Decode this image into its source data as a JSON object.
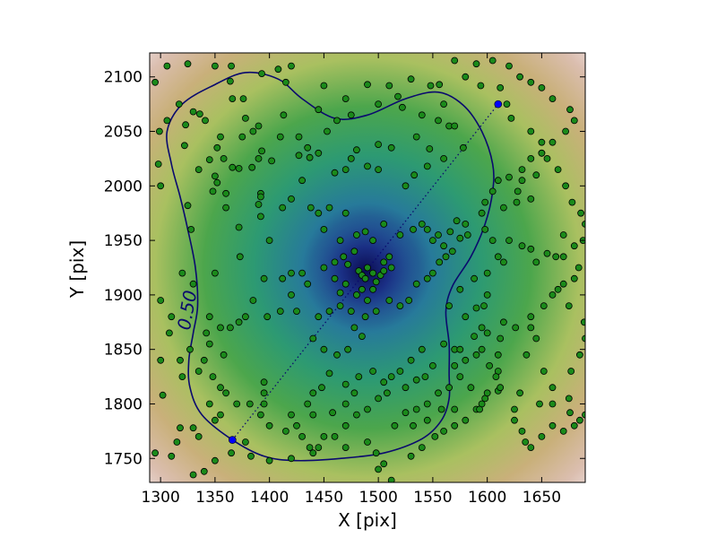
{
  "chart_data": {
    "type": "scatter",
    "xlabel": "X [pix]",
    "ylabel": "Y [pix]",
    "xlim": [
      1290,
      1690
    ],
    "ylim": [
      1728,
      2122
    ],
    "x_ticks": [
      1300,
      1350,
      1400,
      1450,
      1500,
      1550,
      1600,
      1650
    ],
    "y_ticks": [
      1750,
      1800,
      1850,
      1900,
      1950,
      2000,
      2050,
      2100
    ],
    "density_peak": [
      1488,
      1922
    ],
    "contour_level_label": "0.50",
    "contour": [
      [
        1366,
        1767
      ],
      [
        1338,
        1790
      ],
      [
        1327,
        1815
      ],
      [
        1326,
        1840
      ],
      [
        1330,
        1865
      ],
      [
        1334,
        1890
      ],
      [
        1332,
        1925
      ],
      [
        1325,
        1960
      ],
      [
        1318,
        1990
      ],
      [
        1310,
        2020
      ],
      [
        1306,
        2050
      ],
      [
        1320,
        2075
      ],
      [
        1348,
        2092
      ],
      [
        1378,
        2104
      ],
      [
        1408,
        2098
      ],
      [
        1430,
        2080
      ],
      [
        1460,
        2062
      ],
      [
        1490,
        2065
      ],
      [
        1525,
        2080
      ],
      [
        1555,
        2086
      ],
      [
        1578,
        2074
      ],
      [
        1595,
        2050
      ],
      [
        1605,
        2020
      ],
      [
        1605,
        1995
      ],
      [
        1598,
        1965
      ],
      [
        1585,
        1935
      ],
      [
        1568,
        1908
      ],
      [
        1562,
        1885
      ],
      [
        1565,
        1855
      ],
      [
        1565,
        1828
      ],
      [
        1565,
        1805
      ],
      [
        1558,
        1785
      ],
      [
        1540,
        1768
      ],
      [
        1505,
        1755
      ],
      [
        1465,
        1750
      ],
      [
        1425,
        1748
      ],
      [
        1395,
        1752
      ]
    ],
    "major_axis": [
      [
        1366,
        1767
      ],
      [
        1610,
        2075
      ]
    ],
    "marker_color": "#1a8a1a",
    "contour_color": "#0a0a6e",
    "axis_marker_color": "#0000ff",
    "points": [
      [
        1295,
        2095
      ],
      [
        1299,
        2050
      ],
      [
        1306,
        2060
      ],
      [
        1323,
        2056
      ],
      [
        1330,
        2068
      ],
      [
        1336,
        2066
      ],
      [
        1341,
        2060
      ],
      [
        1317,
        2075
      ],
      [
        1306,
        2110
      ],
      [
        1325,
        2112
      ],
      [
        1350,
        2110
      ],
      [
        1365,
        2110
      ],
      [
        1366,
        2080
      ],
      [
        1364,
        2096
      ],
      [
        1376,
        2080
      ],
      [
        1378,
        2062
      ],
      [
        1393,
        2103
      ],
      [
        1408,
        2107
      ],
      [
        1420,
        2110
      ],
      [
        1450,
        2092
      ],
      [
        1390,
        2055
      ],
      [
        1385,
        2050
      ],
      [
        1355,
        2045
      ],
      [
        1352,
        2035
      ],
      [
        1298,
        2020
      ],
      [
        1300,
        2000
      ],
      [
        1322,
        2037
      ],
      [
        1335,
        2015
      ],
      [
        1345,
        2024
      ],
      [
        1350,
        2009
      ],
      [
        1358,
        2025
      ],
      [
        1360,
        1993
      ],
      [
        1366,
        2017
      ],
      [
        1372,
        2016
      ],
      [
        1384,
        2017
      ],
      [
        1375,
        2045
      ],
      [
        1393,
        2032
      ],
      [
        1390,
        2025
      ],
      [
        1402,
        2023
      ],
      [
        1410,
        2045
      ],
      [
        1413,
        2065
      ],
      [
        1427,
        2045
      ],
      [
        1445,
        2070
      ],
      [
        1462,
        2060
      ],
      [
        1475,
        2065
      ],
      [
        1490,
        2093
      ],
      [
        1510,
        2092
      ],
      [
        1530,
        2098
      ],
      [
        1548,
        2092
      ],
      [
        1556,
        2093
      ],
      [
        1560,
        2075
      ],
      [
        1518,
        2082
      ],
      [
        1522,
        2072
      ],
      [
        1500,
        2075
      ],
      [
        1470,
        2080
      ],
      [
        1453,
        2050
      ],
      [
        1427,
        2028
      ],
      [
        1435,
        2035
      ],
      [
        1445,
        2030
      ],
      [
        1415,
        2095
      ],
      [
        1470,
        2015
      ],
      [
        1475,
        2025
      ],
      [
        1480,
        2033
      ],
      [
        1490,
        2018
      ],
      [
        1500,
        2038
      ],
      [
        1512,
        2035
      ],
      [
        1535,
        2045
      ],
      [
        1540,
        2065
      ],
      [
        1555,
        2060
      ],
      [
        1565,
        2055
      ],
      [
        1570,
        2055
      ],
      [
        1578,
        2035
      ],
      [
        1547,
        2034
      ],
      [
        1560,
        2025
      ],
      [
        1545,
        2018
      ],
      [
        1533,
        2010
      ],
      [
        1525,
        2000
      ],
      [
        1500,
        2015
      ],
      [
        1460,
        2012
      ],
      [
        1437,
        2026
      ],
      [
        1430,
        2005
      ],
      [
        1438,
        1980
      ],
      [
        1420,
        1988
      ],
      [
        1412,
        1980
      ],
      [
        1392,
        1993
      ],
      [
        1392,
        1990
      ],
      [
        1390,
        1983
      ],
      [
        1392,
        1972
      ],
      [
        1400,
        1950
      ],
      [
        1372,
        1962
      ],
      [
        1360,
        1980
      ],
      [
        1352,
        2003
      ],
      [
        1348,
        1995
      ],
      [
        1325,
        1982
      ],
      [
        1328,
        1960
      ],
      [
        1320,
        1920
      ],
      [
        1330,
        1910
      ],
      [
        1350,
        1920
      ],
      [
        1373,
        1935
      ],
      [
        1395,
        1915
      ],
      [
        1412,
        1915
      ],
      [
        1420,
        1920
      ],
      [
        1430,
        1920
      ],
      [
        1435,
        1910
      ],
      [
        1420,
        1900
      ],
      [
        1425,
        1885
      ],
      [
        1410,
        1885
      ],
      [
        1398,
        1880
      ],
      [
        1385,
        1895
      ],
      [
        1378,
        1880
      ],
      [
        1372,
        1875
      ],
      [
        1364,
        1870
      ],
      [
        1355,
        1870
      ],
      [
        1345,
        1880
      ],
      [
        1342,
        1865
      ],
      [
        1345,
        1855
      ],
      [
        1358,
        1845
      ],
      [
        1340,
        1840
      ],
      [
        1300,
        1895
      ],
      [
        1310,
        1880
      ],
      [
        1308,
        1865
      ],
      [
        1300,
        1840
      ],
      [
        1318,
        1840
      ],
      [
        1320,
        1825
      ],
      [
        1335,
        1830
      ],
      [
        1348,
        1825
      ],
      [
        1355,
        1815
      ],
      [
        1360,
        1810
      ],
      [
        1370,
        1800
      ],
      [
        1382,
        1800
      ],
      [
        1395,
        1820
      ],
      [
        1395,
        1810
      ],
      [
        1395,
        1800
      ],
      [
        1392,
        1790
      ],
      [
        1400,
        1780
      ],
      [
        1415,
        1775
      ],
      [
        1420,
        1790
      ],
      [
        1425,
        1780
      ],
      [
        1430,
        1770
      ],
      [
        1437,
        1760
      ],
      [
        1420,
        1750
      ],
      [
        1400,
        1748
      ],
      [
        1383,
        1752
      ],
      [
        1365,
        1755
      ],
      [
        1350,
        1748
      ],
      [
        1340,
        1738
      ],
      [
        1330,
        1735
      ],
      [
        1310,
        1752
      ],
      [
        1315,
        1765
      ],
      [
        1318,
        1778
      ],
      [
        1330,
        1778
      ],
      [
        1335,
        1770
      ],
      [
        1350,
        1785
      ],
      [
        1355,
        1790
      ],
      [
        1345,
        1800
      ],
      [
        1378,
        1765
      ],
      [
        1302,
        1808
      ],
      [
        1327,
        1850
      ],
      [
        1295,
        1755
      ],
      [
        1302,
        1725
      ],
      [
        1450,
        1925
      ],
      [
        1460,
        1930
      ],
      [
        1468,
        1935
      ],
      [
        1472,
        1928
      ],
      [
        1478,
        1940
      ],
      [
        1482,
        1922
      ],
      [
        1485,
        1918
      ],
      [
        1488,
        1915
      ],
      [
        1490,
        1925
      ],
      [
        1495,
        1920
      ],
      [
        1498,
        1912
      ],
      [
        1502,
        1918
      ],
      [
        1505,
        1922
      ],
      [
        1495,
        1905
      ],
      [
        1485,
        1905
      ],
      [
        1470,
        1910
      ],
      [
        1480,
        1900
      ],
      [
        1490,
        1895
      ],
      [
        1465,
        1902
      ],
      [
        1460,
        1915
      ],
      [
        1505,
        1930
      ],
      [
        1510,
        1935
      ],
      [
        1512,
        1925
      ],
      [
        1495,
        1950
      ],
      [
        1480,
        1955
      ],
      [
        1465,
        1950
      ],
      [
        1450,
        1960
      ],
      [
        1445,
        1975
      ],
      [
        1455,
        1980
      ],
      [
        1470,
        1975
      ],
      [
        1488,
        1958
      ],
      [
        1505,
        1965
      ],
      [
        1520,
        1955
      ],
      [
        1532,
        1960
      ],
      [
        1540,
        1965
      ],
      [
        1545,
        1960
      ],
      [
        1550,
        1950
      ],
      [
        1555,
        1955
      ],
      [
        1560,
        1945
      ],
      [
        1566,
        1958
      ],
      [
        1572,
        1968
      ],
      [
        1580,
        1965
      ],
      [
        1582,
        1955
      ],
      [
        1575,
        1952
      ],
      [
        1568,
        1940
      ],
      [
        1562,
        1935
      ],
      [
        1556,
        1930
      ],
      [
        1550,
        1920
      ],
      [
        1545,
        1915
      ],
      [
        1535,
        1910
      ],
      [
        1528,
        1895
      ],
      [
        1520,
        1890
      ],
      [
        1510,
        1895
      ],
      [
        1498,
        1885
      ],
      [
        1488,
        1880
      ],
      [
        1475,
        1885
      ],
      [
        1465,
        1890
      ],
      [
        1455,
        1885
      ],
      [
        1445,
        1880
      ],
      [
        1440,
        1860
      ],
      [
        1450,
        1850
      ],
      [
        1462,
        1845
      ],
      [
        1472,
        1850
      ],
      [
        1485,
        1862
      ],
      [
        1478,
        1870
      ],
      [
        1478,
        1810
      ],
      [
        1470,
        1800
      ],
      [
        1458,
        1792
      ],
      [
        1440,
        1790
      ],
      [
        1435,
        1800
      ],
      [
        1440,
        1810
      ],
      [
        1448,
        1815
      ],
      [
        1455,
        1828
      ],
      [
        1470,
        1818
      ],
      [
        1482,
        1825
      ],
      [
        1495,
        1830
      ],
      [
        1505,
        1820
      ],
      [
        1512,
        1825
      ],
      [
        1520,
        1830
      ],
      [
        1530,
        1840
      ],
      [
        1540,
        1850
      ],
      [
        1560,
        1855
      ],
      [
        1550,
        1835
      ],
      [
        1543,
        1825
      ],
      [
        1535,
        1822
      ],
      [
        1525,
        1815
      ],
      [
        1508,
        1810
      ],
      [
        1500,
        1805
      ],
      [
        1490,
        1795
      ],
      [
        1480,
        1790
      ],
      [
        1470,
        1780
      ],
      [
        1460,
        1770
      ],
      [
        1450,
        1770
      ],
      [
        1445,
        1760
      ],
      [
        1440,
        1755
      ],
      [
        1470,
        1760
      ],
      [
        1490,
        1765
      ],
      [
        1498,
        1755
      ],
      [
        1505,
        1745
      ],
      [
        1500,
        1740
      ],
      [
        1512,
        1730
      ],
      [
        1530,
        1752
      ],
      [
        1540,
        1760
      ],
      [
        1552,
        1770
      ],
      [
        1560,
        1775
      ],
      [
        1570,
        1780
      ],
      [
        1580,
        1785
      ],
      [
        1590,
        1795
      ],
      [
        1595,
        1800
      ],
      [
        1598,
        1805
      ],
      [
        1600,
        1810
      ],
      [
        1610,
        1812
      ],
      [
        1625,
        1795
      ],
      [
        1625,
        1785
      ],
      [
        1632,
        1775
      ],
      [
        1635,
        1765
      ],
      [
        1640,
        1760
      ],
      [
        1650,
        1770
      ],
      [
        1660,
        1780
      ],
      [
        1670,
        1775
      ],
      [
        1680,
        1780
      ],
      [
        1685,
        1785
      ],
      [
        1690,
        1790
      ],
      [
        1676,
        1792
      ],
      [
        1660,
        1800
      ],
      [
        1648,
        1800
      ],
      [
        1630,
        1810
      ],
      [
        1612,
        1815
      ],
      [
        1610,
        1830
      ],
      [
        1610,
        1845
      ],
      [
        1612,
        1860
      ],
      [
        1626,
        1870
      ],
      [
        1640,
        1880
      ],
      [
        1652,
        1890
      ],
      [
        1660,
        1900
      ],
      [
        1670,
        1910
      ],
      [
        1680,
        1915
      ],
      [
        1684,
        1925
      ],
      [
        1670,
        1935
      ],
      [
        1655,
        1938
      ],
      [
        1640,
        1942
      ],
      [
        1632,
        1945
      ],
      [
        1620,
        1950
      ],
      [
        1610,
        1935
      ],
      [
        1605,
        1950
      ],
      [
        1598,
        1960
      ],
      [
        1595,
        1975
      ],
      [
        1598,
        1985
      ],
      [
        1605,
        1995
      ],
      [
        1610,
        2005
      ],
      [
        1620,
        2008
      ],
      [
        1632,
        2015
      ],
      [
        1640,
        2025
      ],
      [
        1650,
        2030
      ],
      [
        1660,
        2040
      ],
      [
        1672,
        2050
      ],
      [
        1680,
        2060
      ],
      [
        1676,
        2070
      ],
      [
        1660,
        2080
      ],
      [
        1650,
        2090
      ],
      [
        1640,
        2095
      ],
      [
        1630,
        2100
      ],
      [
        1620,
        2110
      ],
      [
        1605,
        2115
      ],
      [
        1590,
        2112
      ],
      [
        1570,
        2115
      ],
      [
        1580,
        2100
      ],
      [
        1594,
        2092
      ],
      [
        1612,
        2090
      ],
      [
        1618,
        2075
      ],
      [
        1622,
        2062
      ],
      [
        1640,
        2050
      ],
      [
        1650,
        2040
      ],
      [
        1655,
        2025
      ],
      [
        1665,
        2015
      ],
      [
        1672,
        2000
      ],
      [
        1678,
        1985
      ],
      [
        1686,
        1975
      ],
      [
        1690,
        1965
      ],
      [
        1688,
        1950
      ],
      [
        1680,
        1945
      ],
      [
        1670,
        1955
      ],
      [
        1640,
        1988
      ],
      [
        1627,
        1985
      ],
      [
        1615,
        1980
      ],
      [
        1628,
        1995
      ],
      [
        1632,
        2005
      ],
      [
        1645,
        2010
      ],
      [
        1650,
        2030
      ],
      [
        1663,
        1935
      ],
      [
        1615,
        1875
      ],
      [
        1600,
        1865
      ],
      [
        1595,
        1850
      ],
      [
        1602,
        1835
      ],
      [
        1608,
        1825
      ],
      [
        1640,
        1870
      ],
      [
        1645,
        1860
      ],
      [
        1636,
        1845
      ],
      [
        1652,
        1830
      ],
      [
        1660,
        1815
      ],
      [
        1675,
        1805
      ],
      [
        1677,
        1830
      ],
      [
        1685,
        1845
      ],
      [
        1690,
        1860
      ],
      [
        1689,
        1875
      ],
      [
        1675,
        1890
      ],
      [
        1665,
        1905
      ],
      [
        1600,
        1900
      ],
      [
        1588,
        1915
      ],
      [
        1575,
        1905
      ],
      [
        1565,
        1890
      ],
      [
        1580,
        1880
      ],
      [
        1590,
        1888
      ],
      [
        1595,
        1870
      ],
      [
        1590,
        1845
      ],
      [
        1580,
        1840
      ],
      [
        1570,
        1850
      ],
      [
        1575,
        1825
      ],
      [
        1585,
        1815
      ],
      [
        1593,
        1795
      ],
      [
        1570,
        1795
      ],
      [
        1555,
        1810
      ],
      [
        1545,
        1800
      ],
      [
        1535,
        1795
      ],
      [
        1525,
        1792
      ],
      [
        1515,
        1780
      ],
      [
        1532,
        1780
      ],
      [
        1545,
        1785
      ],
      [
        1558,
        1795
      ],
      [
        1565,
        1815
      ],
      [
        1570,
        1835
      ],
      [
        1575,
        1850
      ],
      [
        1588,
        1862
      ],
      [
        1597,
        1890
      ],
      [
        1600,
        1920
      ],
      [
        1615,
        1930
      ],
      [
        1645,
        1930
      ]
    ]
  }
}
